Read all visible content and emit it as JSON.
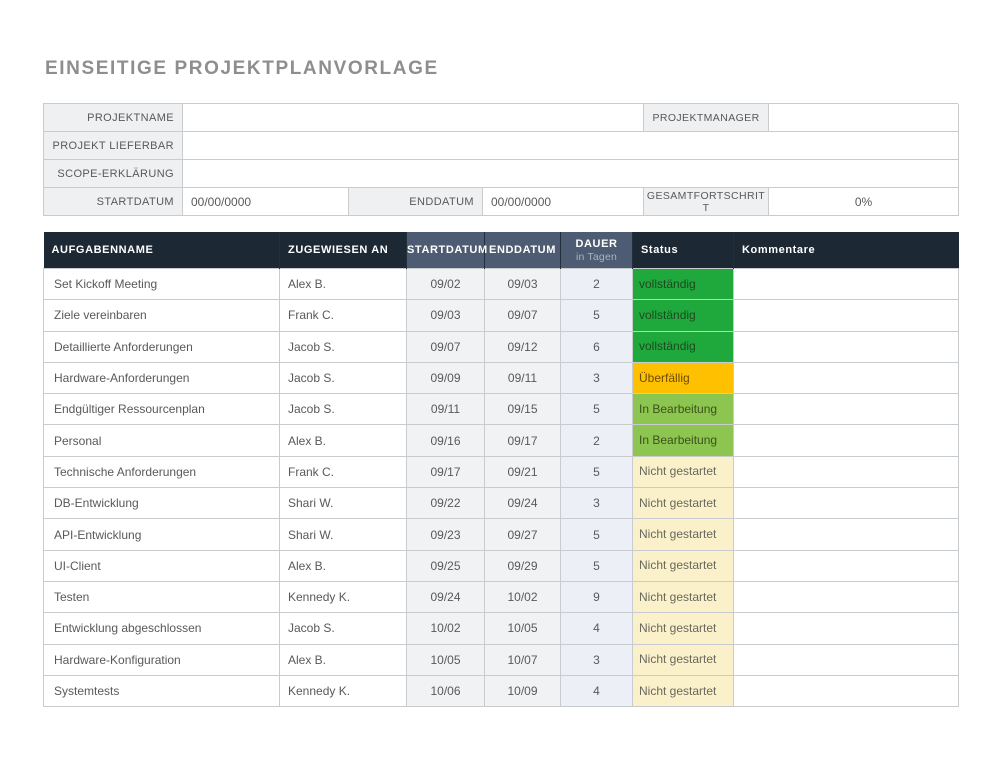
{
  "page": {
    "title": "EINSEITIGE PROJEKTPLANVORLAGE"
  },
  "form": {
    "projektname_label": "PROJEKTNAME",
    "projektname_value": "",
    "projektmanager_label": "PROJEKTMANAGER",
    "projektmanager_value": "",
    "projekt_lieferbar_label": "PROJEKT LIEFERBAR",
    "projekt_lieferbar_value": "",
    "scope_label": "SCOPE-ERKLÄRUNG",
    "scope_value": "",
    "startdatum_label": "STARTDATUM",
    "startdatum_value": "00/00/0000",
    "enddatum_label": "ENDDATUM",
    "enddatum_value": "00/00/0000",
    "gesamtfortschritt_label": "GESAMTFORTSCHRITT",
    "gesamtfortschritt_value": "0%"
  },
  "table": {
    "headers": {
      "task": "AUFGABENNAME",
      "assignee": "ZUGEWIESEN AN",
      "start": "STARTDATUM",
      "end": "ENDDATUM",
      "dauer": "DAUER",
      "dauer_sub": "in Tagen",
      "status": "Status",
      "comments": "Kommentare"
    },
    "status_styles": {
      "vollständig": {
        "bg": "#1FA83C",
        "text": "#1d4a21"
      },
      "Überfällig": {
        "bg": "#FFC000",
        "text": "#6b4b05"
      },
      "In Bearbeitung": {
        "bg": "#8CC550",
        "text": "#3c511b"
      },
      "Nicht gestartet": {
        "bg": "#FAF0CA",
        "text": "#68685e"
      }
    },
    "rows": [
      {
        "task": "Set Kickoff Meeting",
        "assignee": "Alex B.",
        "start": "09/02",
        "end": "09/03",
        "duration": "2",
        "status": "vollständig",
        "comment": ""
      },
      {
        "task": "Ziele vereinbaren",
        "assignee": "Frank C.",
        "start": "09/03",
        "end": "09/07",
        "duration": "5",
        "status": "vollständig",
        "comment": ""
      },
      {
        "task": "Detaillierte Anforderungen",
        "assignee": "Jacob S.",
        "start": "09/07",
        "end": "09/12",
        "duration": "6",
        "status": "vollständig",
        "comment": ""
      },
      {
        "task": "Hardware-Anforderungen",
        "assignee": "Jacob S.",
        "start": "09/09",
        "end": "09/11",
        "duration": "3",
        "status": "Überfällig",
        "comment": ""
      },
      {
        "task": "Endgültiger Ressourcenplan",
        "assignee": "Jacob S.",
        "start": "09/11",
        "end": "09/15",
        "duration": "5",
        "status": "In Bearbeitung",
        "comment": ""
      },
      {
        "task": "Personal",
        "assignee": "Alex B.",
        "start": "09/16",
        "end": "09/17",
        "duration": "2",
        "status": "In Bearbeitung",
        "comment": ""
      },
      {
        "task": "Technische Anforderungen",
        "assignee": "Frank C.",
        "start": "09/17",
        "end": "09/21",
        "duration": "5",
        "status": "Nicht gestartet",
        "comment": ""
      },
      {
        "task": "DB-Entwicklung",
        "assignee": "Shari W.",
        "start": "09/22",
        "end": "09/24",
        "duration": "3",
        "status": "Nicht gestartet",
        "comment": ""
      },
      {
        "task": "API-Entwicklung",
        "assignee": "Shari W.",
        "start": "09/23",
        "end": "09/27",
        "duration": "5",
        "status": "Nicht gestartet",
        "comment": ""
      },
      {
        "task": "UI-Client",
        "assignee": "Alex B.",
        "start": "09/25",
        "end": "09/29",
        "duration": "5",
        "status": "Nicht gestartet",
        "comment": ""
      },
      {
        "task": "Testen",
        "assignee": "Kennedy K.",
        "start": "09/24",
        "end": "10/02",
        "duration": "9",
        "status": "Nicht gestartet",
        "comment": ""
      },
      {
        "task": "Entwicklung abgeschlossen",
        "assignee": "Jacob S.",
        "start": "10/02",
        "end": "10/05",
        "duration": "4",
        "status": "Nicht gestartet",
        "comment": ""
      },
      {
        "task": "Hardware-Konfiguration",
        "assignee": "Alex B.",
        "start": "10/05",
        "end": "10/07",
        "duration": "3",
        "status": "Nicht gestartet",
        "comment": ""
      },
      {
        "task": "Systemtests",
        "assignee": "Kennedy K.",
        "start": "10/06",
        "end": "10/09",
        "duration": "4",
        "status": "Nicht gestartet",
        "comment": ""
      }
    ]
  },
  "colors": {
    "header_dark": "#1D2835",
    "header_slate": "#4D5C72",
    "header_subtext": "#AAB4C0",
    "form_label_bg": "#EEF0F1",
    "grid_border": "#C9CCCE",
    "date_cell_bg": "#F0F2F3",
    "duration_cell_bg": "#ECEFF5",
    "body_text": "#595959",
    "title_text": "#8E8E8E",
    "status_complete": "#1FA83C",
    "status_overdue": "#FFC000",
    "status_in_progress": "#8CC550",
    "status_not_started": "#FAF0CA"
  }
}
